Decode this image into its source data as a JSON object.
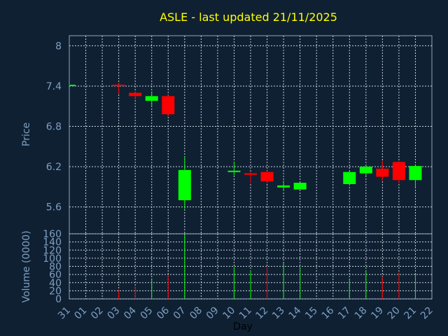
{
  "chart_data": [
    {
      "type": "candlestick",
      "title": "ASLE - last updated 21/11/2025",
      "ylabel": "Price",
      "ylim": [
        5.2,
        8.15
      ],
      "yticks": [
        5.6,
        6.2,
        6.8,
        7.4,
        8.0
      ],
      "ytick_labels": [
        "5.6",
        "6.2",
        "6.8",
        "7.4",
        "8"
      ],
      "grid": true,
      "up_color": "#00ff00",
      "down_color": "#ff0000",
      "candles": [
        {
          "day": "31",
          "open": 7.42,
          "high": 7.43,
          "low": 7.41,
          "close": 7.42
        },
        {
          "day": "03",
          "open": 7.42,
          "high": 7.45,
          "low": 7.28,
          "close": 7.4
        },
        {
          "day": "04",
          "open": 7.3,
          "high": 7.32,
          "low": 7.2,
          "close": 7.25
        },
        {
          "day": "05",
          "open": 7.18,
          "high": 7.32,
          "low": 7.1,
          "close": 7.25
        },
        {
          "day": "06",
          "open": 7.25,
          "high": 7.27,
          "low": 6.95,
          "close": 6.98
        },
        {
          "day": "07",
          "open": 5.7,
          "high": 6.35,
          "low": 5.57,
          "close": 6.15
        },
        {
          "day": "10",
          "open": 6.12,
          "high": 6.27,
          "low": 6.07,
          "close": 6.14
        },
        {
          "day": "11",
          "open": 6.1,
          "high": 6.13,
          "low": 5.95,
          "close": 6.08
        },
        {
          "day": "12",
          "open": 6.12,
          "high": 6.14,
          "low": 5.95,
          "close": 5.98
        },
        {
          "day": "13",
          "open": 5.89,
          "high": 5.99,
          "low": 5.84,
          "close": 5.92
        },
        {
          "day": "14",
          "open": 5.86,
          "high": 5.96,
          "low": 5.86,
          "close": 5.96
        },
        {
          "day": "17",
          "open": 5.94,
          "high": 6.13,
          "low": 5.92,
          "close": 6.12
        },
        {
          "day": "18",
          "open": 6.1,
          "high": 6.22,
          "low": 6.06,
          "close": 6.2
        },
        {
          "day": "19",
          "open": 6.17,
          "high": 6.29,
          "low": 5.99,
          "close": 6.05
        },
        {
          "day": "20",
          "open": 6.27,
          "high": 6.28,
          "low": 5.95,
          "close": 6.0
        },
        {
          "day": "21",
          "open": 6.0,
          "high": 6.22,
          "low": 5.89,
          "close": 6.21
        }
      ]
    },
    {
      "type": "bar",
      "ylabel": "Volume (0000)",
      "xlabel": "Day",
      "ylim": [
        0,
        160
      ],
      "yticks": [
        0,
        20,
        40,
        60,
        80,
        100,
        120,
        140,
        160
      ],
      "ytick_labels": [
        "0",
        "20",
        "40",
        "60",
        "80",
        "100",
        "120",
        "140",
        "160"
      ],
      "categories": [
        "31",
        "01",
        "02",
        "03",
        "04",
        "05",
        "06",
        "07",
        "08",
        "09",
        "10",
        "11",
        "12",
        "13",
        "14",
        "15",
        "16",
        "17",
        "18",
        "19",
        "20",
        "21",
        "22"
      ],
      "volumes": [
        {
          "day": "31",
          "value": 0,
          "color": "#00ff00"
        },
        {
          "day": "03",
          "value": 22,
          "color": "#ff0000"
        },
        {
          "day": "04",
          "value": 30,
          "color": "#ff0000"
        },
        {
          "day": "05",
          "value": 48,
          "color": "#00ff00"
        },
        {
          "day": "06",
          "value": 58,
          "color": "#ff0000"
        },
        {
          "day": "07",
          "value": 158,
          "color": "#00ff00"
        },
        {
          "day": "10",
          "value": 78,
          "color": "#00ff00"
        },
        {
          "day": "11",
          "value": 70,
          "color": "#00ff00"
        },
        {
          "day": "12",
          "value": 78,
          "color": "#ff0000"
        },
        {
          "day": "13",
          "value": 88,
          "color": "#00ff00"
        },
        {
          "day": "14",
          "value": 76,
          "color": "#00ff00"
        },
        {
          "day": "17",
          "value": 48,
          "color": "#00ff00"
        },
        {
          "day": "18",
          "value": 70,
          "color": "#00ff00"
        },
        {
          "day": "19",
          "value": 55,
          "color": "#ff0000"
        },
        {
          "day": "20",
          "value": 65,
          "color": "#ff0000"
        },
        {
          "day": "21",
          "value": 60,
          "color": "#00ff00"
        }
      ]
    }
  ],
  "colors": {
    "background": "#0f2033",
    "title": "#ffff00",
    "axis_text": "#7f9fc0",
    "grid": "#c8d2dc",
    "frame": "#8fa3b8"
  }
}
